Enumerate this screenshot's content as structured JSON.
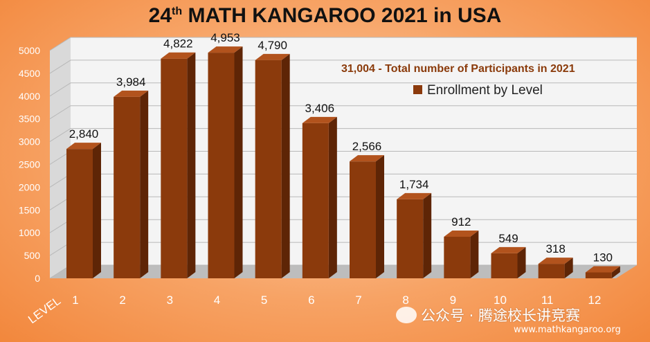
{
  "title": {
    "prefix": "24",
    "superscript": "th",
    "rest": " MATH KANGAROO 2021 in USA"
  },
  "watermark": {
    "account": "公众号 · 腾途校长讲竞赛",
    "url": "www.mathkangaroo.org"
  },
  "colors": {
    "bar_front": "#8b3a0c",
    "bar_top": "#b2531d",
    "bar_side": "#5e2506",
    "background": "#f7a365",
    "annotation": "#8a3a0a"
  },
  "chart_data": {
    "type": "bar",
    "title": "24th MATH KANGAROO 2021 in USA",
    "xlabel": "LEVEL",
    "ylabel": "",
    "categories": [
      "1",
      "2",
      "3",
      "4",
      "5",
      "6",
      "7",
      "8",
      "9",
      "10",
      "11",
      "12"
    ],
    "series": [
      {
        "name": "Enrollment by Level",
        "values": [
          2840,
          3984,
          4822,
          4953,
          4790,
          3406,
          2566,
          1734,
          912,
          549,
          318,
          130
        ],
        "labels": [
          "2,840",
          "3,984",
          "4,822",
          "4,953",
          "4,790",
          "3,406",
          "2,566",
          "1,734",
          "912",
          "549",
          "318",
          "130"
        ]
      }
    ],
    "ylim": [
      0,
      5000
    ],
    "yticks": [
      "0",
      "500",
      "1000",
      "1500",
      "2000",
      "2500",
      "3000",
      "3500",
      "4000",
      "4500",
      "5000"
    ],
    "annotation": "31,004 - Total number of Participants in 2021",
    "legend_position": "top-right",
    "grid": true,
    "style": "3d"
  }
}
